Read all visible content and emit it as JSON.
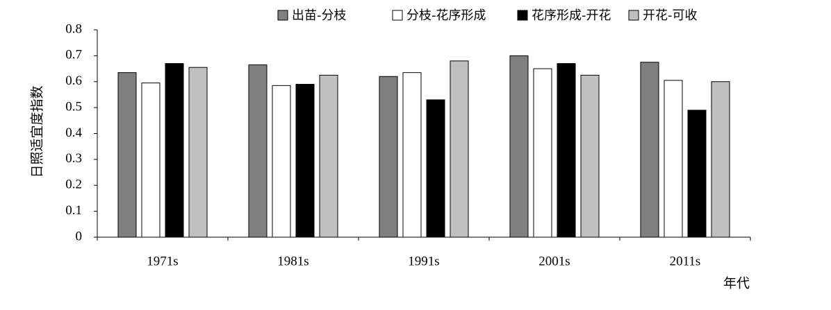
{
  "chart_data": {
    "type": "bar",
    "y_label": "日照适宜度指数",
    "x_label": "年代",
    "categories": [
      "1971s",
      "1981s",
      "1991s",
      "2001s",
      "2011s"
    ],
    "series": [
      {
        "name": "出苗-分枝",
        "color": "#808080",
        "values": [
          0.635,
          0.665,
          0.62,
          0.7,
          0.675
        ]
      },
      {
        "name": "分枝-花序形成",
        "color": "#ffffff",
        "values": [
          0.595,
          0.585,
          0.635,
          0.65,
          0.605
        ]
      },
      {
        "name": "花序形成-开花",
        "color": "#000000",
        "values": [
          0.67,
          0.59,
          0.53,
          0.67,
          0.49
        ]
      },
      {
        "name": "开花-可收",
        "color": "#c0c0c0",
        "values": [
          0.655,
          0.625,
          0.68,
          0.625,
          0.6
        ]
      }
    ],
    "ylim": [
      0,
      0.8
    ],
    "yticks": [
      0,
      0.1,
      0.2,
      0.3,
      0.4,
      0.5,
      0.6,
      0.7,
      0.8
    ],
    "legend": "top"
  }
}
